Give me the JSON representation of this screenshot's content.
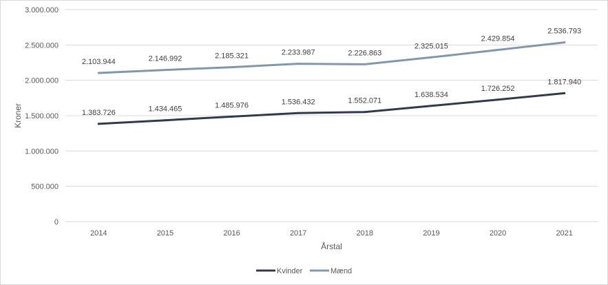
{
  "chart_data": {
    "type": "line",
    "title": "",
    "xlabel": "Årstal",
    "ylabel": "Kroner",
    "ylim": [
      0,
      3000000
    ],
    "yticks": [
      0,
      500000,
      1000000,
      1500000,
      2000000,
      2500000,
      3000000
    ],
    "ytick_labels": [
      "0",
      "500.000",
      "1.000.000",
      "1.500.000",
      "2.000.000",
      "2.500.000",
      "3.000.000"
    ],
    "categories": [
      "2014",
      "2015",
      "2016",
      "2017",
      "2018",
      "2019",
      "2020",
      "2021"
    ],
    "grid": true,
    "legend_position": "bottom",
    "series": [
      {
        "name": "Kvinder",
        "color": "#323a4a",
        "values": [
          1383726,
          1434465,
          1485976,
          1536432,
          1552071,
          1638534,
          1726252,
          1817940
        ],
        "labels": [
          "1.383.726",
          "1.434.465",
          "1.485.976",
          "1.536.432",
          "1.552.071",
          "1.638.534",
          "1.726.252",
          "1.817.940"
        ]
      },
      {
        "name": "Mænd",
        "color": "#8497a9",
        "values": [
          2103944,
          2146992,
          2185321,
          2233987,
          2226863,
          2325015,
          2429854,
          2536793
        ],
        "labels": [
          "2.103.944",
          "2.146.992",
          "2.185.321",
          "2.233.987",
          "2.226.863",
          "2.325.015",
          "2.429.854",
          "2.536.793"
        ]
      }
    ]
  }
}
